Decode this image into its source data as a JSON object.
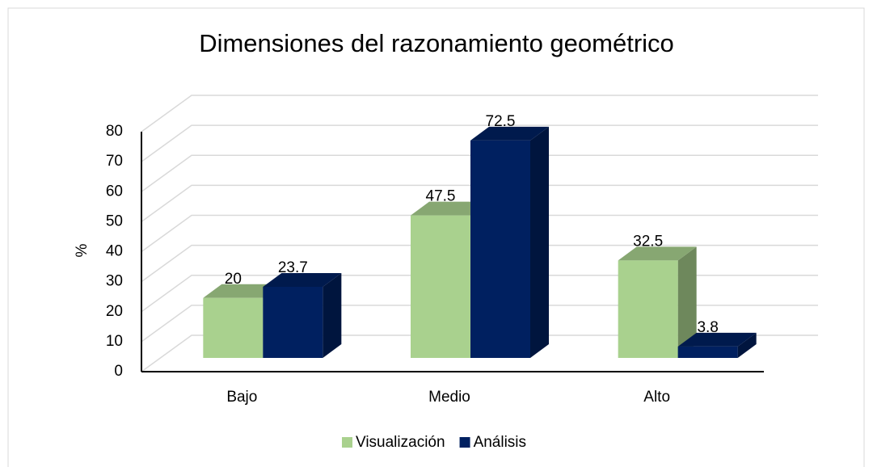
{
  "chart_data": {
    "type": "bar3d",
    "title": "Dimensiones del razonamiento geométrico",
    "y_label": "%",
    "categories": [
      "Bajo",
      "Medio",
      "Alto"
    ],
    "series": [
      {
        "name": "Visualización",
        "color": "#a9d18e",
        "values": [
          20,
          47.5,
          32.5
        ]
      },
      {
        "name": "Análisis",
        "color": "#002060",
        "values": [
          23.7,
          72.5,
          3.8
        ]
      }
    ],
    "ylim": [
      0,
      80
    ],
    "yticks": [
      0,
      10,
      20,
      30,
      40,
      50,
      60,
      70,
      80
    ],
    "grid": true,
    "legend": "bottom"
  }
}
